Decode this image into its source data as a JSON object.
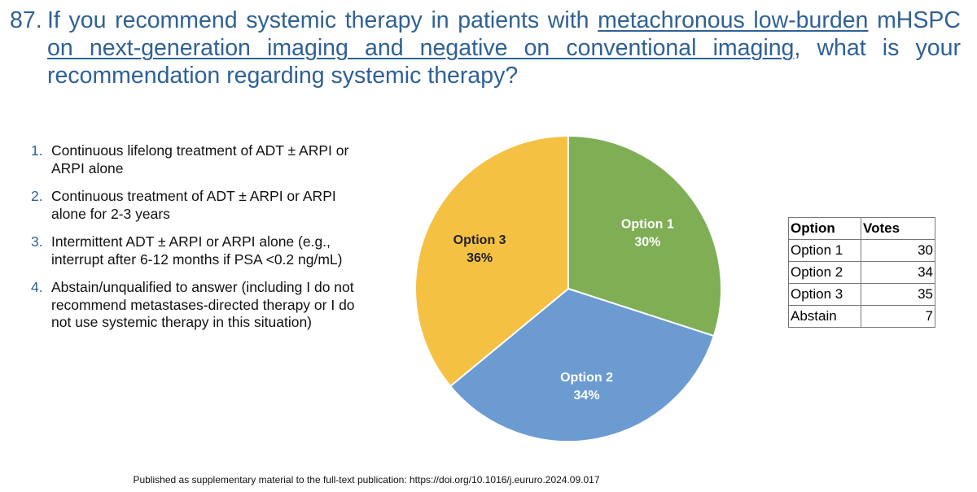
{
  "question": {
    "number": "87.",
    "parts": [
      {
        "text": "If you recommend systemic therapy in patients with ",
        "underline": false
      },
      {
        "text": "metachronous low-burden",
        "underline": true
      },
      {
        "text": " mHSPC ",
        "underline": false
      },
      {
        "text": "on next-generation imaging and negative on conventional imaging",
        "underline": true
      },
      {
        "text": ", what is your recommendation regarding systemic therapy?",
        "underline": false
      }
    ]
  },
  "options": [
    {
      "marker": "1.",
      "text": "Continuous lifelong treatment of ADT ± ARPI or ARPI alone"
    },
    {
      "marker": "2.",
      "text": "Continuous treatment of ADT ± ARPI or ARPI alone for 2-3 years"
    },
    {
      "marker": "3.",
      "text": "Intermittent ADT ± ARPI or ARPI alone (e.g., interrupt after 6-12 months if PSA <0.2 ng/mL)"
    },
    {
      "marker": "4.",
      "text": "Abstain/unqualified to answer (including I do not recommend metastases-directed therapy or I do not use systemic therapy in this situation)"
    }
  ],
  "chart_data": {
    "type": "pie",
    "categories": [
      "Option 1",
      "Option 2",
      "Option 3"
    ],
    "values": [
      30,
      34,
      36
    ],
    "value_labels": [
      "30%",
      "34%",
      "36%"
    ],
    "colors": [
      "#7fae55",
      "#6b9bd1",
      "#f4c143"
    ]
  },
  "table": {
    "header": [
      "Option",
      "Votes"
    ],
    "rows": [
      [
        "Option 1",
        "30"
      ],
      [
        "Option 2",
        "34"
      ],
      [
        "Option 3",
        "35"
      ],
      [
        "Abstain",
        "7"
      ]
    ]
  },
  "footer": "Published as supplementary material to the full-text publication: https://doi.org/10.1016/j.eururo.2024.09.017"
}
